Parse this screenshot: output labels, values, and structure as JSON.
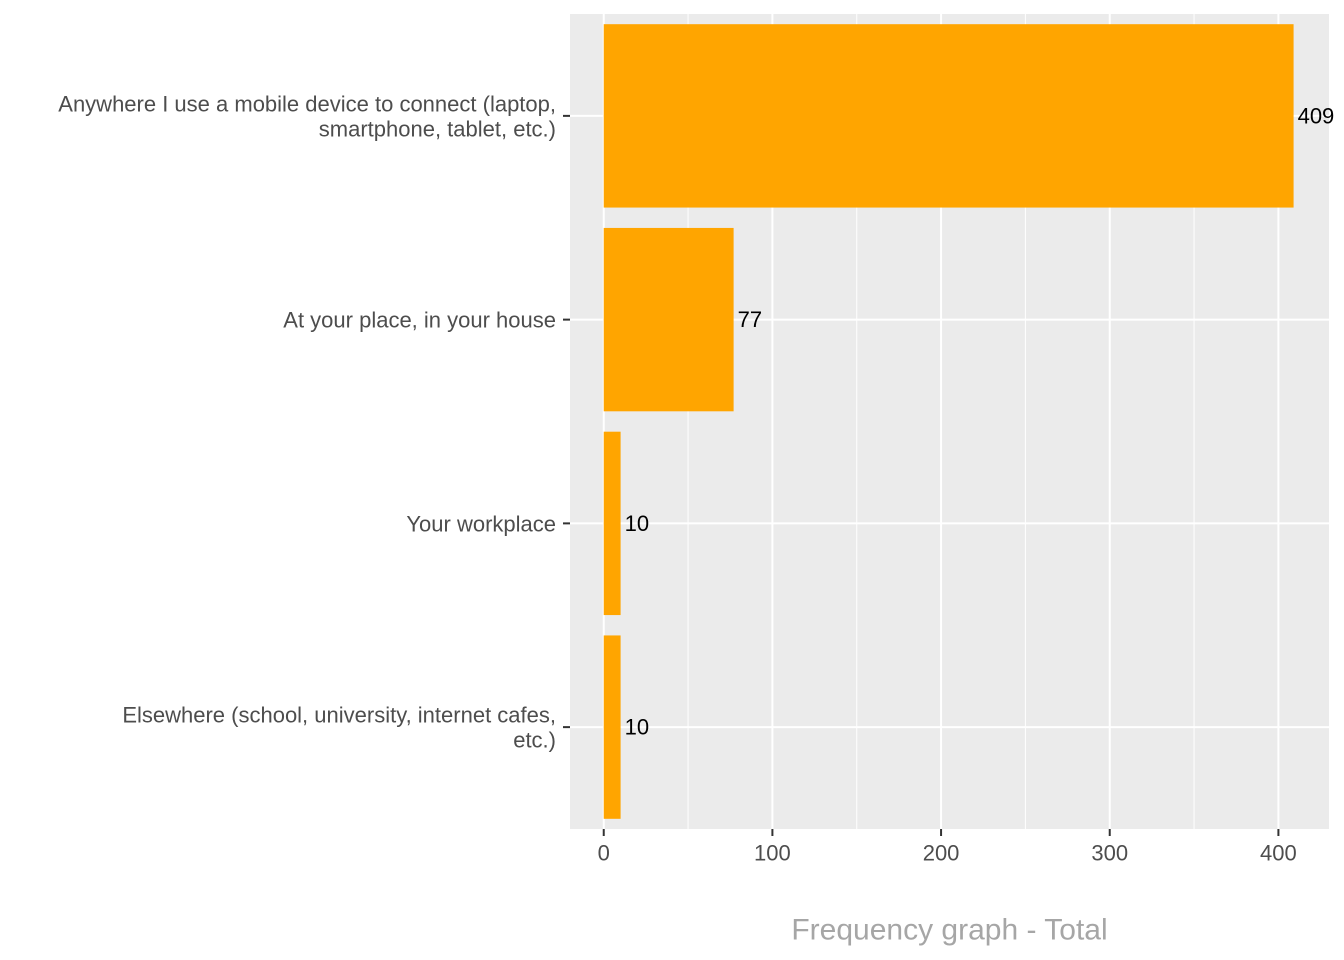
{
  "chart_data": {
    "type": "bar",
    "orientation": "horizontal",
    "categories": [
      [
        "Anywhere I use a mobile device to connect (laptop,",
        "smartphone, tablet, etc.)"
      ],
      [
        "At your place, in your house"
      ],
      [
        "Your workplace"
      ],
      [
        "Elsewhere (school, university, internet cafes,",
        "etc.)"
      ]
    ],
    "values": [
      409,
      77,
      10,
      10
    ],
    "data_labels": [
      "409",
      "77",
      "10",
      "10"
    ],
    "xlabel": "Frequency graph - Total",
    "xlim": [
      -20,
      430
    ],
    "xticks": [
      0,
      100,
      200,
      300,
      400
    ],
    "grid": true,
    "colors": {
      "bar": "#FFA500",
      "panel": "#EBEBEB",
      "grid": "#FFFFFF",
      "tick": "#333333"
    }
  }
}
